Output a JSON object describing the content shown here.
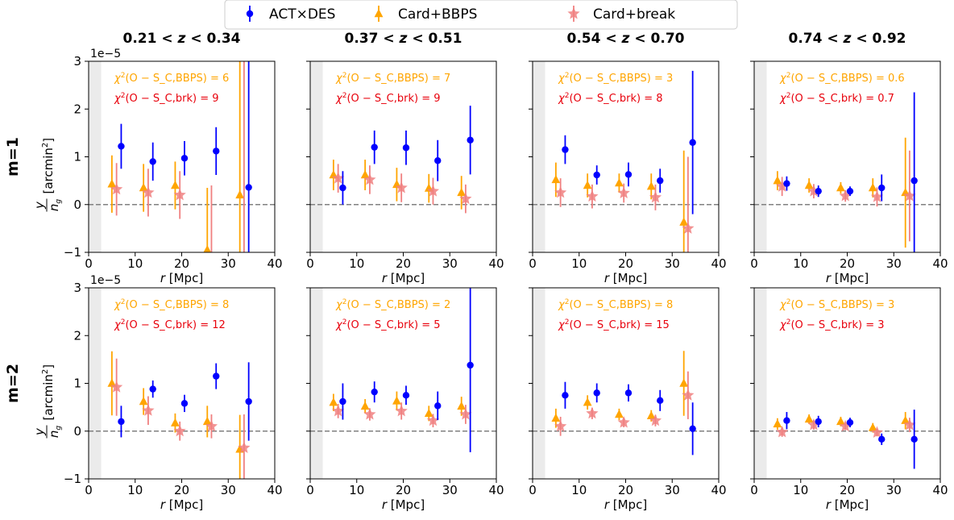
{
  "legend": {
    "items": [
      {
        "label": "ACT×DES",
        "marker": "circle",
        "color": "#0000ff"
      },
      {
        "label": "Card+BBPS",
        "marker": "triangle",
        "color": "#ffa500"
      },
      {
        "label": "Card+break",
        "marker": "star",
        "color": "#f08080"
      }
    ]
  },
  "colors": {
    "act": "#0000ff",
    "bbps": "#ffa500",
    "brk": "#f08080",
    "chi_bbps": "#ffa500",
    "chi_brk": "#e8000b",
    "zero_line": "#808080",
    "shade": "#ebebeb"
  },
  "column_titles": [
    "0.21 < z < 0.34",
    "0.37 < z < 0.51",
    "0.54 < z < 0.70",
    "0.74 < z < 0.92"
  ],
  "row_labels": [
    "m=1",
    "m=2"
  ],
  "xlabel": "r [Mpc]",
  "ylabel": "y/n_g [arcmin²]",
  "offset_text": "1e−5",
  "chi_label_bbps": "χ²(O − S_C,BBPS) = ",
  "chi_label_brk": "χ²(O − S_C,brk) = ",
  "chart_data": {
    "type": "scatter",
    "xlim": [
      0,
      40
    ],
    "ylim": [
      -1,
      3
    ],
    "y_scale_factor": "1e-5",
    "x_ticks": [
      0,
      10,
      20,
      30,
      40
    ],
    "y_ticks": [
      -1,
      0,
      1,
      2,
      3
    ],
    "shaded_region_x": [
      0,
      2.7
    ],
    "zero_line": 0,
    "panels": [
      {
        "row": 0,
        "col": 0,
        "chi2_bbps": "6",
        "chi2_brk": "9",
        "series": [
          {
            "name": "ACT×DES",
            "x": [
              7,
              13.8,
              20.6,
              27.4,
              34.4
            ],
            "y": [
              1.22,
              0.9,
              0.97,
              1.12,
              0.36
            ],
            "err": [
              0.47,
              0.4,
              0.36,
              0.5,
              3.5
            ]
          },
          {
            "name": "Card+BBPS",
            "x": [
              5,
              11.8,
              18.6,
              25.5,
              32.5
            ],
            "y": [
              0.43,
              0.35,
              0.4,
              -0.95,
              0.2
            ],
            "err": [
              0.6,
              0.5,
              0.5,
              1.3,
              4.0
            ]
          },
          {
            "name": "Card+break",
            "x": [
              6,
              12.8,
              19.6,
              26.4,
              33.4
            ],
            "y": [
              0.32,
              0.25,
              0.2,
              -1.1,
              -1.2
            ],
            "err": [
              0.55,
              0.5,
              0.5,
              1.5,
              4.5
            ]
          }
        ]
      },
      {
        "row": 0,
        "col": 1,
        "chi2_bbps": "7",
        "chi2_brk": "9",
        "series": [
          {
            "name": "ACT×DES",
            "x": [
              7,
              13.8,
              20.6,
              27.4,
              34.4
            ],
            "y": [
              0.35,
              1.2,
              1.19,
              0.92,
              1.35
            ],
            "err": [
              0.35,
              0.35,
              0.36,
              0.43,
              0.72
            ]
          },
          {
            "name": "Card+BBPS",
            "x": [
              5,
              11.8,
              18.6,
              25.5,
              32.5
            ],
            "y": [
              0.62,
              0.62,
              0.42,
              0.34,
              0.25
            ],
            "err": [
              0.32,
              0.32,
              0.35,
              0.3,
              0.35
            ]
          },
          {
            "name": "Card+break",
            "x": [
              6,
              12.8,
              19.6,
              26.4,
              33.4
            ],
            "y": [
              0.55,
              0.52,
              0.35,
              0.28,
              0.12
            ],
            "err": [
              0.3,
              0.3,
              0.3,
              0.28,
              0.3
            ]
          }
        ]
      },
      {
        "row": 0,
        "col": 2,
        "chi2_bbps": "3",
        "chi2_brk": "8",
        "series": [
          {
            "name": "ACT×DES",
            "x": [
              7,
              13.8,
              20.6,
              27.4,
              34.4
            ],
            "y": [
              1.15,
              0.62,
              0.63,
              0.5,
              1.3
            ],
            "err": [
              0.3,
              0.2,
              0.25,
              0.25,
              1.5
            ]
          },
          {
            "name": "Card+BBPS",
            "x": [
              5,
              11.8,
              18.6,
              25.5,
              32.5
            ],
            "y": [
              0.52,
              0.4,
              0.45,
              0.38,
              -0.37
            ],
            "err": [
              0.36,
              0.25,
              0.2,
              0.27,
              1.5
            ]
          },
          {
            "name": "Card+break",
            "x": [
              6,
              12.8,
              19.6,
              26.4,
              33.4
            ],
            "y": [
              0.25,
              0.17,
              0.24,
              0.15,
              -0.5
            ],
            "err": [
              0.3,
              0.25,
              0.2,
              0.27,
              1.5
            ]
          }
        ]
      },
      {
        "row": 0,
        "col": 3,
        "chi2_bbps": "0.6",
        "chi2_brk": "0.7",
        "series": [
          {
            "name": "ACT×DES",
            "x": [
              7,
              13.8,
              20.6,
              27.4,
              34.4
            ],
            "y": [
              0.44,
              0.28,
              0.28,
              0.35,
              0.5
            ],
            "err": [
              0.15,
              0.12,
              0.1,
              0.28,
              1.85
            ]
          },
          {
            "name": "Card+BBPS",
            "x": [
              5,
              11.8,
              18.6,
              25.5,
              32.5
            ],
            "y": [
              0.5,
              0.4,
              0.35,
              0.35,
              0.25
            ],
            "err": [
              0.2,
              0.15,
              0.12,
              0.2,
              1.15
            ]
          },
          {
            "name": "Card+break",
            "x": [
              6,
              12.8,
              19.6,
              26.4,
              33.4
            ],
            "y": [
              0.38,
              0.28,
              0.18,
              0.16,
              0.18
            ],
            "err": [
              0.2,
              0.15,
              0.12,
              0.2,
              0.95
            ]
          }
        ]
      },
      {
        "row": 1,
        "col": 0,
        "chi2_bbps": "8",
        "chi2_brk": "12",
        "series": [
          {
            "name": "ACT×DES",
            "x": [
              7,
              13.8,
              20.6,
              27.4,
              34.4
            ],
            "y": [
              0.2,
              0.88,
              0.58,
              1.15,
              0.62
            ],
            "err": [
              0.33,
              0.18,
              0.18,
              0.27,
              0.82
            ]
          },
          {
            "name": "Card+BBPS",
            "x": [
              5,
              11.8,
              18.6,
              25.5,
              32.5
            ],
            "y": [
              1.0,
              0.62,
              0.17,
              0.2,
              -0.38
            ],
            "err": [
              0.67,
              0.28,
              0.2,
              0.33,
              0.72
            ]
          },
          {
            "name": "Card+break",
            "x": [
              6,
              12.8,
              19.6,
              26.4,
              33.4
            ],
            "y": [
              0.92,
              0.43,
              0.0,
              0.1,
              -0.35
            ],
            "err": [
              0.6,
              0.3,
              0.2,
              0.25,
              0.7
            ]
          }
        ]
      },
      {
        "row": 1,
        "col": 1,
        "chi2_bbps": "2",
        "chi2_brk": "5",
        "series": [
          {
            "name": "ACT×DES",
            "x": [
              7,
              13.8,
              20.6,
              27.4,
              34.4
            ],
            "y": [
              0.62,
              0.82,
              0.75,
              0.53,
              1.38
            ],
            "err": [
              0.38,
              0.22,
              0.2,
              0.3,
              1.82
            ]
          },
          {
            "name": "Card+BBPS",
            "x": [
              5,
              11.8,
              18.6,
              25.5,
              32.5
            ],
            "y": [
              0.6,
              0.52,
              0.63,
              0.37,
              0.52
            ],
            "err": [
              0.18,
              0.15,
              0.2,
              0.16,
              0.2
            ]
          },
          {
            "name": "Card+break",
            "x": [
              6,
              12.8,
              19.6,
              26.4,
              33.4
            ],
            "y": [
              0.42,
              0.35,
              0.42,
              0.22,
              0.35
            ],
            "err": [
              0.15,
              0.13,
              0.18,
              0.14,
              0.2
            ]
          }
        ]
      },
      {
        "row": 1,
        "col": 2,
        "chi2_bbps": "8",
        "chi2_brk": "15",
        "series": [
          {
            "name": "ACT×DES",
            "x": [
              7,
              13.8,
              20.6,
              27.4,
              34.4
            ],
            "y": [
              0.75,
              0.8,
              0.8,
              0.64,
              0.05
            ],
            "err": [
              0.28,
              0.2,
              0.18,
              0.22,
              0.55
            ]
          },
          {
            "name": "Card+BBPS",
            "x": [
              5,
              11.8,
              18.6,
              25.5,
              32.5
            ],
            "y": [
              0.27,
              0.6,
              0.35,
              0.32,
              1.0
            ],
            "err": [
              0.2,
              0.15,
              0.12,
              0.12,
              0.68
            ]
          },
          {
            "name": "Card+break",
            "x": [
              6,
              12.8,
              19.6,
              26.4,
              33.4
            ],
            "y": [
              0.1,
              0.37,
              0.18,
              0.22,
              0.75
            ],
            "err": [
              0.2,
              0.12,
              0.1,
              0.12,
              0.5
            ]
          }
        ]
      },
      {
        "row": 1,
        "col": 3,
        "chi2_bbps": "3",
        "chi2_brk": "3",
        "series": [
          {
            "name": "ACT×DES",
            "x": [
              7,
              13.8,
              20.6,
              27.4,
              34.4
            ],
            "y": [
              0.22,
              0.2,
              0.18,
              -0.17,
              -0.17
            ],
            "err": [
              0.18,
              0.12,
              0.1,
              0.12,
              0.62
            ]
          },
          {
            "name": "Card+BBPS",
            "x": [
              5,
              11.8,
              18.6,
              25.5,
              32.5
            ],
            "y": [
              0.15,
              0.25,
              0.2,
              0.07,
              0.22
            ],
            "err": [
              0.12,
              0.1,
              0.1,
              0.1,
              0.18
            ]
          },
          {
            "name": "Card+break",
            "x": [
              6,
              12.8,
              19.6,
              26.4,
              33.4
            ],
            "y": [
              -0.02,
              0.13,
              0.1,
              -0.03,
              0.13
            ],
            "err": [
              0.1,
              0.1,
              0.08,
              0.08,
              0.15
            ]
          }
        ]
      }
    ]
  }
}
